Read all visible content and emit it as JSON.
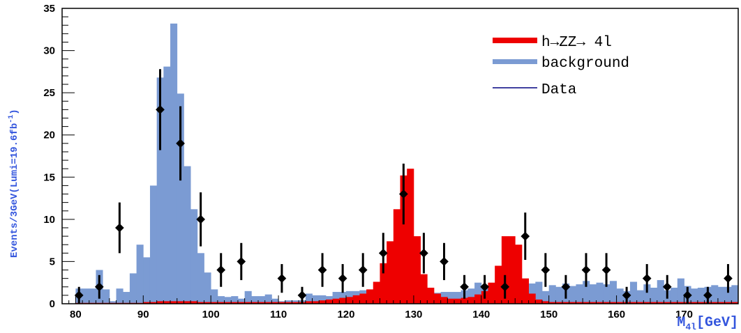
{
  "chart_data": {
    "type": "bar",
    "xlabel": "M",
    "xlabel_sub": "4l",
    "xlabel_unit": "[GeV]",
    "ylabel": "Events/3GeV(Lumi=19.6fb",
    "ylabel_sup": "-1",
    "ylabel_close": ")",
    "xlim": [
      78,
      178
    ],
    "ylim": [
      0,
      35
    ],
    "x_ticks": [
      80,
      90,
      100,
      110,
      120,
      130,
      140,
      150,
      160,
      170
    ],
    "y_ticks": [
      0,
      5,
      10,
      15,
      20,
      25,
      30,
      35
    ],
    "grid": false,
    "legend_position": "top-right",
    "legend": [
      {
        "label": "h→ZZ→ 4l",
        "color": "#ee0000",
        "style": "fill"
      },
      {
        "label": "background",
        "color": "#7b9bd3",
        "style": "fill"
      },
      {
        "label": "Data",
        "color": "#000080",
        "style": "line"
      }
    ],
    "background": {
      "name": "background",
      "color": "#7b9bd3",
      "bin_width": 1,
      "bin_edges_start": 80,
      "values": [
        1.8,
        1.8,
        1.8,
        4.0,
        1.7,
        0.3,
        1.8,
        1.4,
        3.6,
        7.0,
        5.5,
        14.0,
        26.8,
        28.1,
        33.2,
        24.9,
        16.3,
        11.2,
        6.0,
        3.7,
        1.7,
        0.9,
        0.8,
        0.9,
        0.6,
        1.5,
        0.9,
        0.9,
        1.1,
        0.6,
        0.3,
        0.4,
        0.4,
        0.4,
        1.2,
        1.0,
        1.0,
        0.9,
        1.4,
        1.4,
        1.5,
        1.5,
        1.6,
        1.6,
        1.6,
        1.7,
        1.8,
        1.8,
        1.6,
        1.5,
        1.3,
        1.3,
        1.3,
        1.3,
        1.4,
        1.4,
        1.4,
        1.6,
        1.8,
        2.5,
        2.2,
        2.3,
        2.0,
        1.8,
        2.2,
        2.4,
        2.0,
        2.4,
        2.6,
        1.5,
        2.2,
        2.0,
        2.4,
        2.1,
        2.3,
        2.7,
        2.3,
        2.5,
        2.3,
        2.7,
        1.8,
        1.5,
        2.6,
        1.6,
        2.3,
        1.9,
        2.8,
        1.6,
        1.9,
        3.0,
        2.1,
        1.8,
        1.9,
        2.0,
        2.2,
        2.0,
        2.0,
        2.2
      ],
      "values_note_removed": true
    },
    "signal": {
      "name": "h→ZZ→ 4l",
      "color": "#ee0000",
      "bin_width": 1,
      "bin_edges_start": 80,
      "values": [
        0.1,
        0.1,
        0.1,
        0.1,
        0.1,
        0.1,
        0.1,
        0.1,
        0.1,
        0.1,
        0.2,
        0.2,
        0.3,
        0.3,
        0.3,
        0.3,
        0.3,
        0.3,
        0.2,
        0.2,
        0.2,
        0.2,
        0.2,
        0.2,
        0.2,
        0.2,
        0.2,
        0.2,
        0.2,
        0.2,
        0.2,
        0.2,
        0.2,
        0.2,
        0.3,
        0.3,
        0.4,
        0.5,
        0.6,
        0.7,
        0.8,
        1.0,
        1.2,
        1.7,
        2.6,
        4.8,
        7.4,
        11.2,
        15.2,
        16.0,
        8.0,
        3.5,
        1.9,
        1.2,
        0.8,
        0.6,
        0.6,
        0.7,
        0.8,
        1.1,
        1.5,
        2.5,
        4.5,
        8.0,
        8.0,
        7.0,
        3.0,
        1.2,
        0.5,
        0.3,
        0.2,
        0.2,
        0.2,
        0.2,
        0.2,
        0.2,
        0.2,
        0.2,
        0.2,
        0.2,
        0.2,
        0.2,
        0.2,
        0.2,
        0.2,
        0.2,
        0.2,
        0.2,
        0.2,
        0.2,
        0.2,
        0.2,
        0.2,
        0.2,
        0.2,
        0.2,
        0.2,
        0.2
      ]
    },
    "data_points": {
      "name": "Data",
      "color": "#000000",
      "x": [
        80.5,
        83.5,
        86.5,
        89.5,
        92.5,
        95.5,
        98.5,
        101.5,
        104.5,
        107.5,
        110.5,
        113.5,
        116.5,
        119.5,
        122.5,
        125.5,
        128.5,
        131.5,
        134.5,
        137.5,
        140.5,
        143.5,
        146.5,
        149.5,
        152.5,
        155.5,
        158.5,
        161.5,
        164.5,
        167.5,
        170.5,
        173.5,
        176.5
      ],
      "y": [
        1,
        2,
        9,
        0,
        23,
        19,
        10,
        4,
        5,
        0,
        3,
        1,
        4,
        3,
        4,
        6,
        13,
        6,
        5,
        2,
        2,
        2,
        8,
        4,
        2,
        4,
        4,
        1,
        3,
        2,
        1,
        1,
        3
      ],
      "y_err": [
        1.0,
        1.4,
        3.0,
        0,
        4.8,
        4.4,
        3.2,
        2.0,
        2.2,
        0,
        1.7,
        1.0,
        2.0,
        1.7,
        2.0,
        2.4,
        3.6,
        2.4,
        2.2,
        1.4,
        1.4,
        1.4,
        2.8,
        2.0,
        1.4,
        2.0,
        2.0,
        1.0,
        1.7,
        1.4,
        1.0,
        1.0,
        1.7
      ]
    }
  }
}
